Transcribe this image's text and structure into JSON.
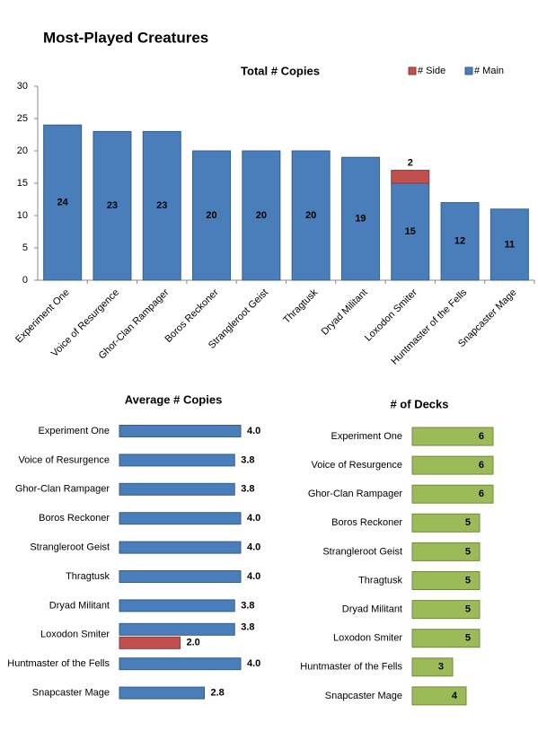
{
  "title": "Most-Played  Creatures",
  "chart_data": [
    {
      "type": "bar",
      "stacked": true,
      "title": "Total # Copies",
      "categories": [
        "Experiment One",
        "Voice of Resurgence",
        "Ghor-Clan Rampager",
        "Boros Reckoner",
        "Strangleroot Geist",
        "Thragtusk",
        "Dryad Militant",
        "Loxodon Smiter",
        "Huntmaster of the Fells",
        "Snapcaster Mage"
      ],
      "series": [
        {
          "name": "# Main",
          "color": "#4a7ebb",
          "values": [
            24,
            23,
            23,
            20,
            20,
            20,
            19,
            15,
            12,
            11
          ]
        },
        {
          "name": "# Side",
          "color": "#c0504d",
          "values": [
            null,
            null,
            null,
            null,
            null,
            null,
            null,
            2,
            null,
            null
          ]
        }
      ],
      "ylim": [
        0,
        30
      ],
      "yticks": [
        0,
        5,
        10,
        15,
        20,
        25,
        30
      ],
      "legend": "top-right"
    },
    {
      "type": "hbar",
      "title": "Average # Copies",
      "categories": [
        "Experiment One",
        "Voice of Resurgence",
        "Ghor-Clan Rampager",
        "Boros Reckoner",
        "Strangleroot Geist",
        "Thragtusk",
        "Dryad Militant",
        "Loxodon Smiter",
        "Huntmaster of the Fells",
        "Snapcaster Mage"
      ],
      "series": [
        {
          "color": "#4a7ebb",
          "values": [
            4,
            3.8,
            3.8,
            4,
            4,
            4,
            3.8,
            3.8,
            4,
            2.8
          ],
          "value_labels": [
            "4.0",
            "3.8",
            "3.8",
            "4.0",
            "4.0",
            "4.0",
            "3.8",
            "3.8",
            "4.0",
            "2.8"
          ]
        },
        {
          "color": "#c0504d",
          "values": [
            null,
            null,
            null,
            null,
            null,
            null,
            null,
            2,
            null,
            null
          ],
          "value_labels": [
            null,
            null,
            null,
            null,
            null,
            null,
            null,
            "2.0",
            null,
            null
          ]
        }
      ]
    },
    {
      "type": "hbar",
      "title": "# of Decks",
      "categories": [
        "Experiment One",
        "Voice of Resurgence",
        "Ghor-Clan Rampager",
        "Boros Reckoner",
        "Strangleroot Geist",
        "Thragtusk",
        "Dryad Militant",
        "Loxodon Smiter",
        "Huntmaster of the Fells",
        "Snapcaster Mage"
      ],
      "series": [
        {
          "color": "#9bbb59",
          "values": [
            6,
            6,
            6,
            5,
            5,
            5,
            5,
            5,
            3,
            4
          ]
        }
      ]
    }
  ]
}
